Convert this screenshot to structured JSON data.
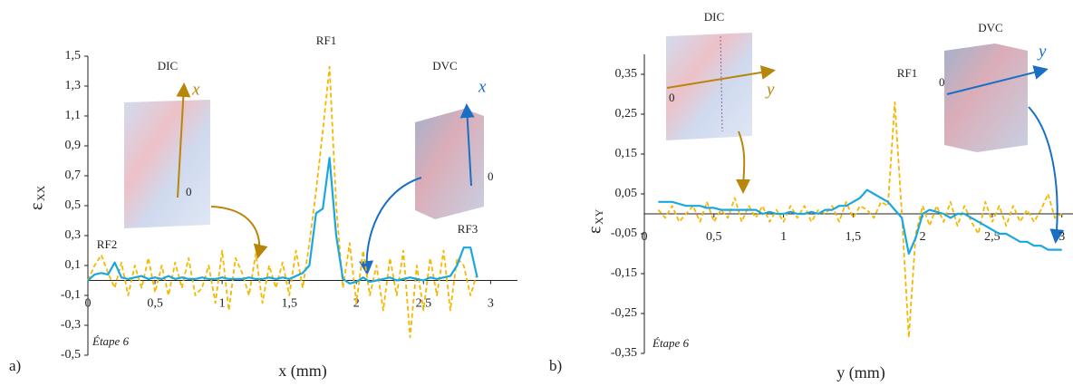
{
  "chart_data": [
    {
      "type": "line",
      "panel": "a)",
      "xlabel": "x (mm)",
      "ylabel": {
        "symbol": "ε",
        "subscript": "XX"
      },
      "annotations": [
        "RF1",
        "RF2",
        "RF3",
        "DIC",
        "DVC",
        "x⃗",
        "x⃗",
        "0",
        "0",
        "Étape 6"
      ],
      "xlim": [
        0,
        3.2
      ],
      "ylim": [
        -0.5,
        1.5
      ],
      "xticks": [
        0,
        {
          "value": 0.5,
          "label": "0,5"
        },
        1,
        {
          "value": 1.5,
          "label": "1,5"
        },
        2,
        {
          "value": 2.5,
          "label": "2,5"
        },
        3
      ],
      "yticks": [
        {
          "value": 1.5,
          "label": "1,5"
        },
        {
          "value": 1.3,
          "label": "1,3"
        },
        {
          "value": 1.1,
          "label": "1,1"
        },
        {
          "value": 0.9,
          "label": "0,9"
        },
        {
          "value": 0.7,
          "label": "0,7"
        },
        {
          "value": 0.5,
          "label": "0,5"
        },
        {
          "value": 0.3,
          "label": "0,3"
        },
        {
          "value": 0.1,
          "label": "0,1"
        },
        {
          "value": -0.1,
          "label": "-0,1"
        },
        {
          "value": -0.3,
          "label": "-0,3"
        },
        {
          "value": -0.5,
          "label": "-0,5"
        }
      ],
      "x": [
        0,
        0.05,
        0.1,
        0.15,
        0.2,
        0.25,
        0.3,
        0.35,
        0.4,
        0.45,
        0.5,
        0.55,
        0.6,
        0.65,
        0.7,
        0.75,
        0.8,
        0.85,
        0.9,
        0.95,
        1,
        1.05,
        1.1,
        1.15,
        1.2,
        1.25,
        1.3,
        1.35,
        1.4,
        1.45,
        1.5,
        1.55,
        1.6,
        1.65,
        1.7,
        1.75,
        1.8,
        1.85,
        1.9,
        1.95,
        2,
        2.05,
        2.1,
        2.15,
        2.2,
        2.25,
        2.3,
        2.35,
        2.4,
        2.45,
        2.5,
        2.55,
        2.6,
        2.65,
        2.7,
        2.75,
        2.8,
        2.85,
        2.9
      ],
      "series": [
        {
          "color": "#f5b800",
          "dashed": true,
          "values": [
            0,
            0.1,
            0.17,
            0.05,
            -0.05,
            0.12,
            -0.1,
            0.1,
            -0.05,
            0.15,
            -0.08,
            0.1,
            -0.1,
            0.12,
            -0.05,
            0.15,
            -0.1,
            -0.05,
            0.1,
            -0.15,
            0.2,
            -0.2,
            0.15,
            0.05,
            -0.1,
            0.18,
            -0.15,
            0.1,
            -0.05,
            0.12,
            -0.1,
            0.2,
            -0.05,
            0.25,
            0.6,
            1.0,
            1.43,
            0.5,
            -0.05,
            0.25,
            -0.15,
            0.2,
            -0.1,
            0.1,
            -0.2,
            0.15,
            -0.1,
            0.2,
            -0.38,
            0.1,
            -0.2,
            0.15,
            -0.1,
            0.2,
            -0.2,
            0.15,
            0.1,
            -0.1,
            0.05
          ]
        },
        {
          "color": "#1aa7e0",
          "dashed": false,
          "values": [
            0,
            0.04,
            0.05,
            0.04,
            0.12,
            0.02,
            0.01,
            0.02,
            0.03,
            0.01,
            0.02,
            0.01,
            0.03,
            0.01,
            0.02,
            0.01,
            0.01,
            0.02,
            0.01,
            0.01,
            0.02,
            0.01,
            0.01,
            0.01,
            0.02,
            0.01,
            0.01,
            0.02,
            0.01,
            0.02,
            0.01,
            0.03,
            0.05,
            0.1,
            0.45,
            0.48,
            0.82,
            0.3,
            0.01,
            -0.02,
            -0.01,
            0.02,
            -0.01,
            0.0,
            0.01,
            0.02,
            0.0,
            0.01,
            0.02,
            0.01,
            0.0,
            0.02,
            0.01,
            0.02,
            0.03,
            0.1,
            0.22,
            0.22,
            0.02
          ]
        }
      ]
    },
    {
      "type": "line",
      "panel": "b)",
      "xlabel": "y (mm)",
      "ylabel": {
        "symbol": "ε",
        "subscript": "XY"
      },
      "annotations": [
        "RF1",
        "DIC",
        "DVC",
        "y⃗",
        "y⃗",
        "0",
        "0",
        "Étape 6"
      ],
      "xlim": [
        0,
        3.08
      ],
      "ylim": [
        -0.35,
        0.4
      ],
      "xticks": [
        0,
        {
          "value": 0.5,
          "label": "0,5"
        },
        1,
        {
          "value": 1.5,
          "label": "1,5"
        },
        2,
        {
          "value": 2.5,
          "label": "2,5"
        },
        3
      ],
      "yticks": [
        {
          "value": 0.35,
          "label": "0,35"
        },
        {
          "value": 0.25,
          "label": "0,25"
        },
        {
          "value": 0.15,
          "label": "0,15"
        },
        {
          "value": 0.05,
          "label": "0,05"
        },
        {
          "value": -0.05,
          "label": "-0,05"
        },
        {
          "value": -0.15,
          "label": "-0,15"
        },
        {
          "value": -0.25,
          "label": "-0,25"
        },
        {
          "value": -0.35,
          "label": "-0,35"
        }
      ],
      "x": [
        0.1,
        0.15,
        0.2,
        0.25,
        0.3,
        0.35,
        0.4,
        0.45,
        0.5,
        0.55,
        0.6,
        0.65,
        0.7,
        0.75,
        0.8,
        0.85,
        0.9,
        0.95,
        1,
        1.05,
        1.1,
        1.15,
        1.2,
        1.25,
        1.3,
        1.35,
        1.4,
        1.45,
        1.5,
        1.55,
        1.6,
        1.65,
        1.7,
        1.75,
        1.8,
        1.85,
        1.9,
        1.95,
        2,
        2.05,
        2.1,
        2.15,
        2.2,
        2.25,
        2.3,
        2.35,
        2.4,
        2.45,
        2.5,
        2.55,
        2.6,
        2.65,
        2.7,
        2.75,
        2.8,
        2.85,
        2.9,
        2.95,
        3
      ],
      "series": [
        {
          "color": "#f5b800",
          "dashed": true,
          "values": [
            0.01,
            -0.01,
            0.02,
            -0.02,
            0.0,
            0.02,
            -0.02,
            0.03,
            -0.02,
            0.01,
            -0.01,
            0.04,
            -0.02,
            0.02,
            -0.01,
            0.02,
            -0.02,
            0.01,
            -0.02,
            0.02,
            -0.01,
            0.02,
            -0.02,
            0.01,
            0.0,
            0.02,
            -0.02,
            0.03,
            -0.01,
            0.02,
            0.01,
            -0.01,
            0.03,
            0.02,
            0.28,
            0.0,
            -0.31,
            -0.05,
            0.02,
            -0.03,
            0.02,
            -0.02,
            0.03,
            -0.03,
            0.02,
            -0.02,
            -0.05,
            0.03,
            -0.02,
            0.02,
            -0.03,
            0.02,
            -0.02,
            0.01,
            -0.02,
            0.01,
            0.05,
            -0.01,
            0.0
          ]
        },
        {
          "color": "#1aa7e0",
          "dashed": false,
          "values": [
            0.03,
            0.03,
            0.03,
            0.025,
            0.02,
            0.02,
            0.02,
            0.015,
            0.015,
            0.01,
            0.01,
            0.01,
            0.01,
            0.01,
            0.01,
            0.0,
            0.005,
            0.0,
            0.0,
            0.005,
            0.0,
            0.0,
            0.005,
            0.0,
            0.01,
            0.01,
            0.02,
            0.02,
            0.03,
            0.04,
            0.06,
            0.05,
            0.04,
            0.03,
            0.01,
            -0.01,
            -0.1,
            -0.06,
            0.0,
            0.01,
            0.005,
            0.0,
            -0.01,
            0.0,
            0.0,
            -0.01,
            -0.02,
            -0.03,
            -0.04,
            -0.05,
            -0.05,
            -0.06,
            -0.07,
            -0.07,
            -0.08,
            -0.08,
            -0.09,
            -0.09,
            -0.09
          ]
        }
      ]
    }
  ]
}
